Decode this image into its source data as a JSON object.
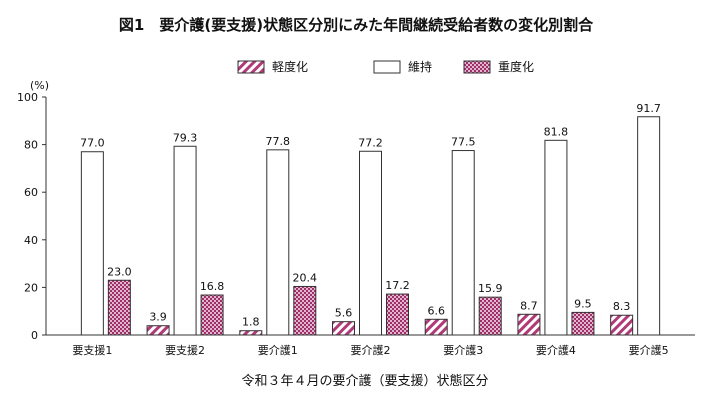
{
  "chart_data": {
    "type": "bar",
    "title": "図1　要介護(要支援)状態区分別にみた年間継続受給者数の変化別割合",
    "xlabel": "令和３年４月の要介護（要支援）状態区分",
    "ylabel": "(%)",
    "ylim": [
      0,
      100
    ],
    "yticks": [
      "0",
      "20",
      "40",
      "60",
      "80",
      "100"
    ],
    "categories": [
      "要支援1",
      "要支援2",
      "要介護1",
      "要介護2",
      "要介護3",
      "要介護4",
      "要介護5"
    ],
    "series": [
      {
        "name": "軽度化",
        "values": [
          null,
          3.9,
          1.8,
          5.6,
          6.6,
          8.7,
          8.3
        ],
        "labels": [
          "",
          "3.9",
          "1.8",
          "5.6",
          "6.6",
          "8.7",
          "8.3"
        ],
        "pattern": "hatch"
      },
      {
        "name": "維持",
        "values": [
          77.0,
          79.3,
          77.8,
          77.2,
          77.5,
          81.8,
          91.7
        ],
        "labels": [
          "77.0",
          "79.3",
          "77.8",
          "77.2",
          "77.5",
          "81.8",
          "91.7"
        ],
        "pattern": "solid"
      },
      {
        "name": "重度化",
        "values": [
          23.0,
          16.8,
          20.4,
          17.2,
          15.9,
          9.5,
          null
        ],
        "labels": [
          "23.0",
          "16.8",
          "20.4",
          "17.2",
          "15.9",
          "9.5",
          ""
        ],
        "pattern": "dots"
      }
    ],
    "legend": "top-center",
    "grid": false,
    "colors": {
      "hatch": "#b03a78",
      "dots": "#b03a78",
      "fill_dots": "#d9a2c2",
      "outline": "#333333"
    }
  }
}
